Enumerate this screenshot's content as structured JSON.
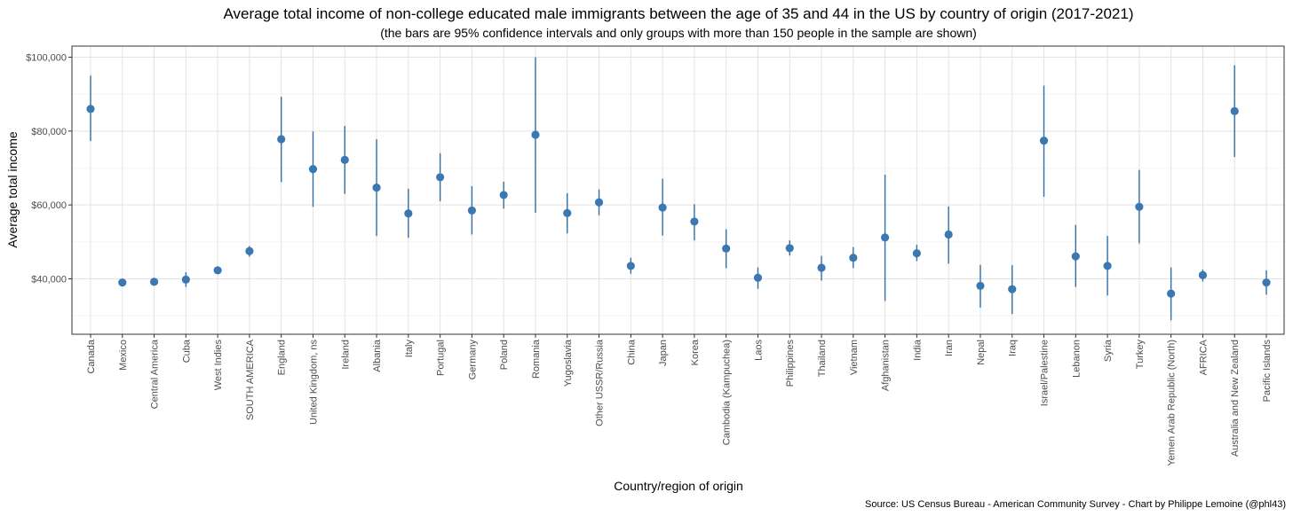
{
  "chart_data": {
    "type": "scatter",
    "title": "Average total income of non-college educated male immigrants between the age of 35 and 44 in the US by country of origin (2017-2021)",
    "subtitle": "(the bars are 95% confidence intervals and only groups with more than 150 people in the sample are shown)",
    "xlabel": "Country/region of origin",
    "ylabel": "Average total income",
    "caption": "Source: US Census Bureau - American Community Survey - Chart by Philippe Lemoine (@phl43)",
    "ylim": [
      25000,
      103000
    ],
    "yticks": [
      40000,
      60000,
      80000,
      100000
    ],
    "ytick_labels": [
      "$40,000",
      "$60,000",
      "$80,000",
      "$100,000"
    ],
    "colors": {
      "point": "#3b78b1",
      "errorbar": "#2f6ea8",
      "grid_major": "#e3e3e3",
      "grid_minor": "#efefef",
      "panel_border": "#333333"
    },
    "categories": [
      "Canada",
      "Mexico",
      "Central America",
      "Cuba",
      "West Indies",
      "SOUTH AMERICA",
      "England",
      "United Kingdom, ns",
      "Ireland",
      "Albania",
      "Italy",
      "Portugal",
      "Germany",
      "Poland",
      "Romania",
      "Yugoslavia",
      "Other USSR/Russia",
      "China",
      "Japan",
      "Korea",
      "Cambodia (Kampuchea)",
      "Laos",
      "Philippines",
      "Thailand",
      "Vietnam",
      "Afghanistan",
      "India",
      "Iran",
      "Nepal",
      "Iraq",
      "Israel/Palestine",
      "Lebanon",
      "Syria",
      "Turkey",
      "Yemen Arab Republic (North)",
      "AFRICA",
      "Australia and New Zealand",
      "Pacific Islands"
    ],
    "series": [
      {
        "name": "Average total income",
        "values": [
          86000,
          39000,
          39200,
          39800,
          42300,
          47500,
          77800,
          69700,
          72200,
          64700,
          57700,
          67500,
          58500,
          62700,
          79000,
          57800,
          60700,
          43500,
          59300,
          55500,
          48200,
          40300,
          48300,
          43000,
          45700,
          51200,
          46900,
          52000,
          38100,
          37200,
          77400,
          46100,
          43500,
          59500,
          36000,
          41000,
          85400,
          39000
        ],
        "lower": [
          77300,
          38500,
          38500,
          37800,
          41300,
          46000,
          66200,
          59500,
          63000,
          51600,
          51100,
          61000,
          52000,
          59000,
          57900,
          52300,
          57200,
          41400,
          51700,
          50400,
          42900,
          37300,
          46300,
          39500,
          42900,
          34000,
          44800,
          44100,
          32200,
          30500,
          62200,
          37800,
          35500,
          49600,
          28800,
          39300,
          73000,
          35700
        ],
        "upper": [
          95000,
          39600,
          39900,
          41800,
          43400,
          48900,
          89300,
          79900,
          81400,
          77800,
          64400,
          74000,
          65100,
          66300,
          100000,
          63200,
          64200,
          45700,
          67100,
          60200,
          53400,
          43100,
          50400,
          46200,
          48600,
          68200,
          49200,
          59600,
          43800,
          43700,
          92300,
          54600,
          51600,
          69500,
          43100,
          42500,
          97800,
          42300
        ]
      }
    ]
  }
}
